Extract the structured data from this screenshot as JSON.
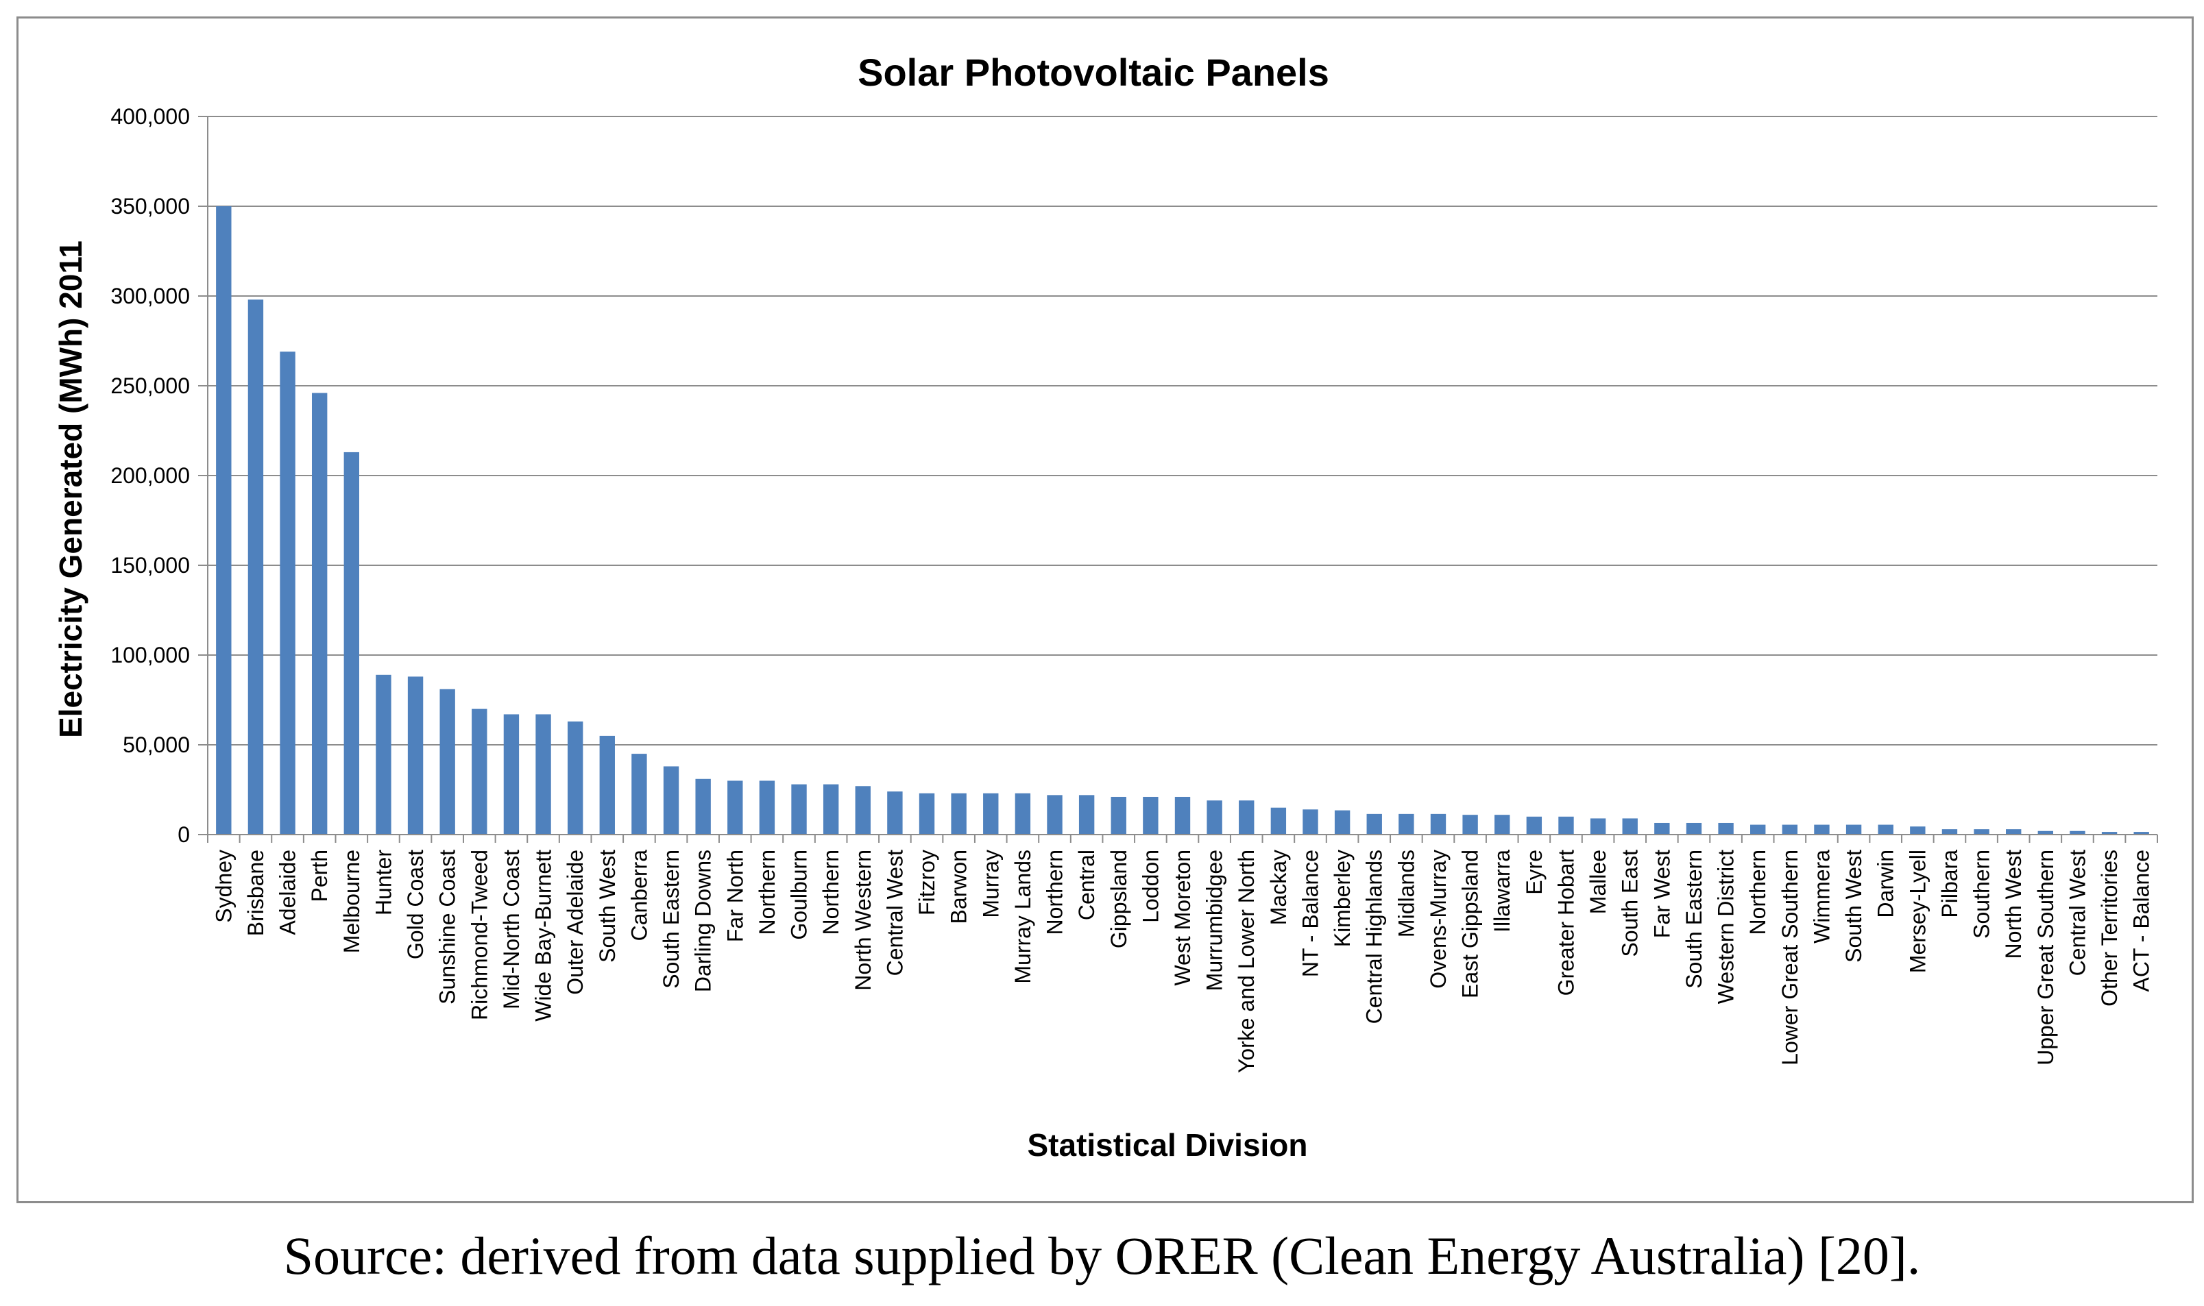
{
  "caption": "Source: derived from data supplied by ORER (Clean Energy Australia) [20].",
  "colors": {
    "bar": "#4F81BD",
    "grid": "#8c8c8c",
    "axis": "#8c8c8c"
  },
  "chart_data": {
    "type": "bar",
    "title": "Solar Photovoltaic Panels",
    "xlabel": "Statistical Division",
    "ylabel": "Electricity Generated (MWh) 2011",
    "ylim": [
      0,
      400000
    ],
    "yticks": [
      0,
      50000,
      100000,
      150000,
      200000,
      250000,
      300000,
      350000,
      400000
    ],
    "ytick_labels": [
      "0",
      "50,000",
      "100,000",
      "150,000",
      "200,000",
      "250,000",
      "300,000",
      "350,000",
      "400,000"
    ],
    "grid": true,
    "categories": [
      "Sydney",
      "Brisbane",
      "Adelaide",
      "Perth",
      "Melbourne",
      "Hunter",
      "Gold Coast",
      "Sunshine Coast",
      "Richmond-Tweed",
      "Mid-North Coast",
      "Wide Bay-Burnett",
      "Outer Adelaide",
      "South West",
      "Canberra",
      "South Eastern",
      "Darling Downs",
      "Far North",
      "Northern",
      "Goulburn",
      "Northern",
      "North Western",
      "Central West",
      "Fitzroy",
      "Barwon",
      "Murray",
      "Murray Lands",
      "Northern",
      "Central",
      "Gippsland",
      "Loddon",
      "West Moreton",
      "Murrumbidgee",
      "Yorke and Lower North",
      "Mackay",
      "NT - Balance",
      "Kimberley",
      "Central Highlands",
      "Midlands",
      "Ovens-Murray",
      "East Gippsland",
      "Illawarra",
      "Eyre",
      "Greater Hobart",
      "Mallee",
      "South East",
      "Far West",
      "South Eastern",
      "Western District",
      "Northern",
      "Lower Great Southern",
      "Wimmera",
      "South West",
      "Darwin",
      "Mersey-Lyell",
      "Pilbara",
      "Southern",
      "North West",
      "Upper Great Southern",
      "Central West",
      "Other Territories",
      "ACT - Balance"
    ],
    "values": [
      350000,
      298000,
      269000,
      246000,
      213000,
      89000,
      88000,
      81000,
      70000,
      67000,
      67000,
      63000,
      55000,
      45000,
      38000,
      31000,
      30000,
      30000,
      28000,
      28000,
      27000,
      24000,
      23000,
      23000,
      23000,
      23000,
      22000,
      22000,
      21000,
      21000,
      21000,
      19000,
      19000,
      15000,
      14000,
      13500,
      11500,
      11500,
      11500,
      11000,
      11000,
      10000,
      10000,
      9000,
      9000,
      6500,
      6500,
      6500,
      5500,
      5500,
      5500,
      5500,
      5500,
      4500,
      3000,
      3000,
      3000,
      2000,
      2000,
      1500,
      1500
    ]
  }
}
